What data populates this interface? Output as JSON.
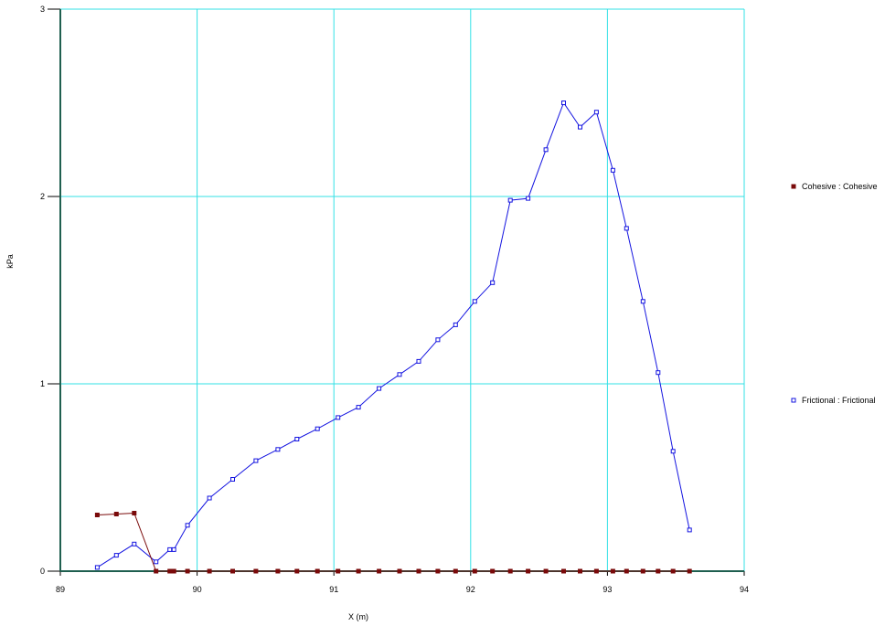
{
  "chart_data": {
    "type": "line",
    "xlabel": "X (m)",
    "ylabel": "kPa",
    "xlim": [
      89,
      94
    ],
    "ylim": [
      0,
      3
    ],
    "x_ticks": [
      "89",
      "90",
      "91",
      "92",
      "93",
      "94"
    ],
    "y_ticks": [
      "0",
      "1",
      "2",
      "3"
    ],
    "grid": true,
    "legend_position": "right",
    "colors": {
      "grid": "#33E0E6",
      "axis": "#1F5F4F"
    },
    "series": [
      {
        "name": "Cohesive : Cohesive",
        "color": "#7A0A0A",
        "marker": "filled-square",
        "points": [
          [
            89.27,
            0.3
          ],
          [
            89.41,
            0.305
          ],
          [
            89.54,
            0.31
          ],
          [
            89.7,
            0.0
          ],
          [
            89.8,
            0.0
          ],
          [
            89.83,
            0.0
          ],
          [
            89.93,
            0.0
          ],
          [
            90.09,
            0.0
          ],
          [
            90.26,
            0.0
          ],
          [
            90.43,
            0.0
          ],
          [
            90.59,
            0.0
          ],
          [
            90.73,
            0.0
          ],
          [
            90.88,
            0.0
          ],
          [
            91.03,
            0.0
          ],
          [
            91.18,
            0.0
          ],
          [
            91.33,
            0.0
          ],
          [
            91.48,
            0.0
          ],
          [
            91.62,
            0.0
          ],
          [
            91.76,
            0.0
          ],
          [
            91.89,
            0.0
          ],
          [
            92.03,
            0.0
          ],
          [
            92.16,
            0.0
          ],
          [
            92.29,
            0.0
          ],
          [
            92.42,
            0.0
          ],
          [
            92.55,
            0.0
          ],
          [
            92.68,
            0.0
          ],
          [
            92.8,
            0.0
          ],
          [
            92.92,
            0.0
          ],
          [
            93.04,
            0.0
          ],
          [
            93.14,
            0.0
          ],
          [
            93.26,
            0.0
          ],
          [
            93.37,
            0.0
          ],
          [
            93.48,
            0.0
          ],
          [
            93.6,
            0.0
          ]
        ]
      },
      {
        "name": "Frictional : Frictional",
        "color": "#1414E0",
        "marker": "open-square",
        "points": [
          [
            89.27,
            0.02
          ],
          [
            89.41,
            0.085
          ],
          [
            89.54,
            0.145
          ],
          [
            89.7,
            0.05
          ],
          [
            89.8,
            0.115
          ],
          [
            89.83,
            0.115
          ],
          [
            89.93,
            0.245
          ],
          [
            90.09,
            0.39
          ],
          [
            90.26,
            0.49
          ],
          [
            90.43,
            0.59
          ],
          [
            90.59,
            0.65
          ],
          [
            90.73,
            0.705
          ],
          [
            90.88,
            0.76
          ],
          [
            91.03,
            0.82
          ],
          [
            91.18,
            0.875
          ],
          [
            91.33,
            0.975
          ],
          [
            91.48,
            1.05
          ],
          [
            91.62,
            1.12
          ],
          [
            91.76,
            1.235
          ],
          [
            91.89,
            1.315
          ],
          [
            92.03,
            1.44
          ],
          [
            92.16,
            1.54
          ],
          [
            92.29,
            1.98
          ],
          [
            92.42,
            1.99
          ],
          [
            92.55,
            2.25
          ],
          [
            92.68,
            2.5
          ],
          [
            92.8,
            2.37
          ],
          [
            92.92,
            2.45
          ],
          [
            93.04,
            2.14
          ],
          [
            93.14,
            1.83
          ],
          [
            93.26,
            1.44
          ],
          [
            93.37,
            1.06
          ],
          [
            93.48,
            0.64
          ],
          [
            93.6,
            0.22
          ]
        ]
      }
    ]
  }
}
